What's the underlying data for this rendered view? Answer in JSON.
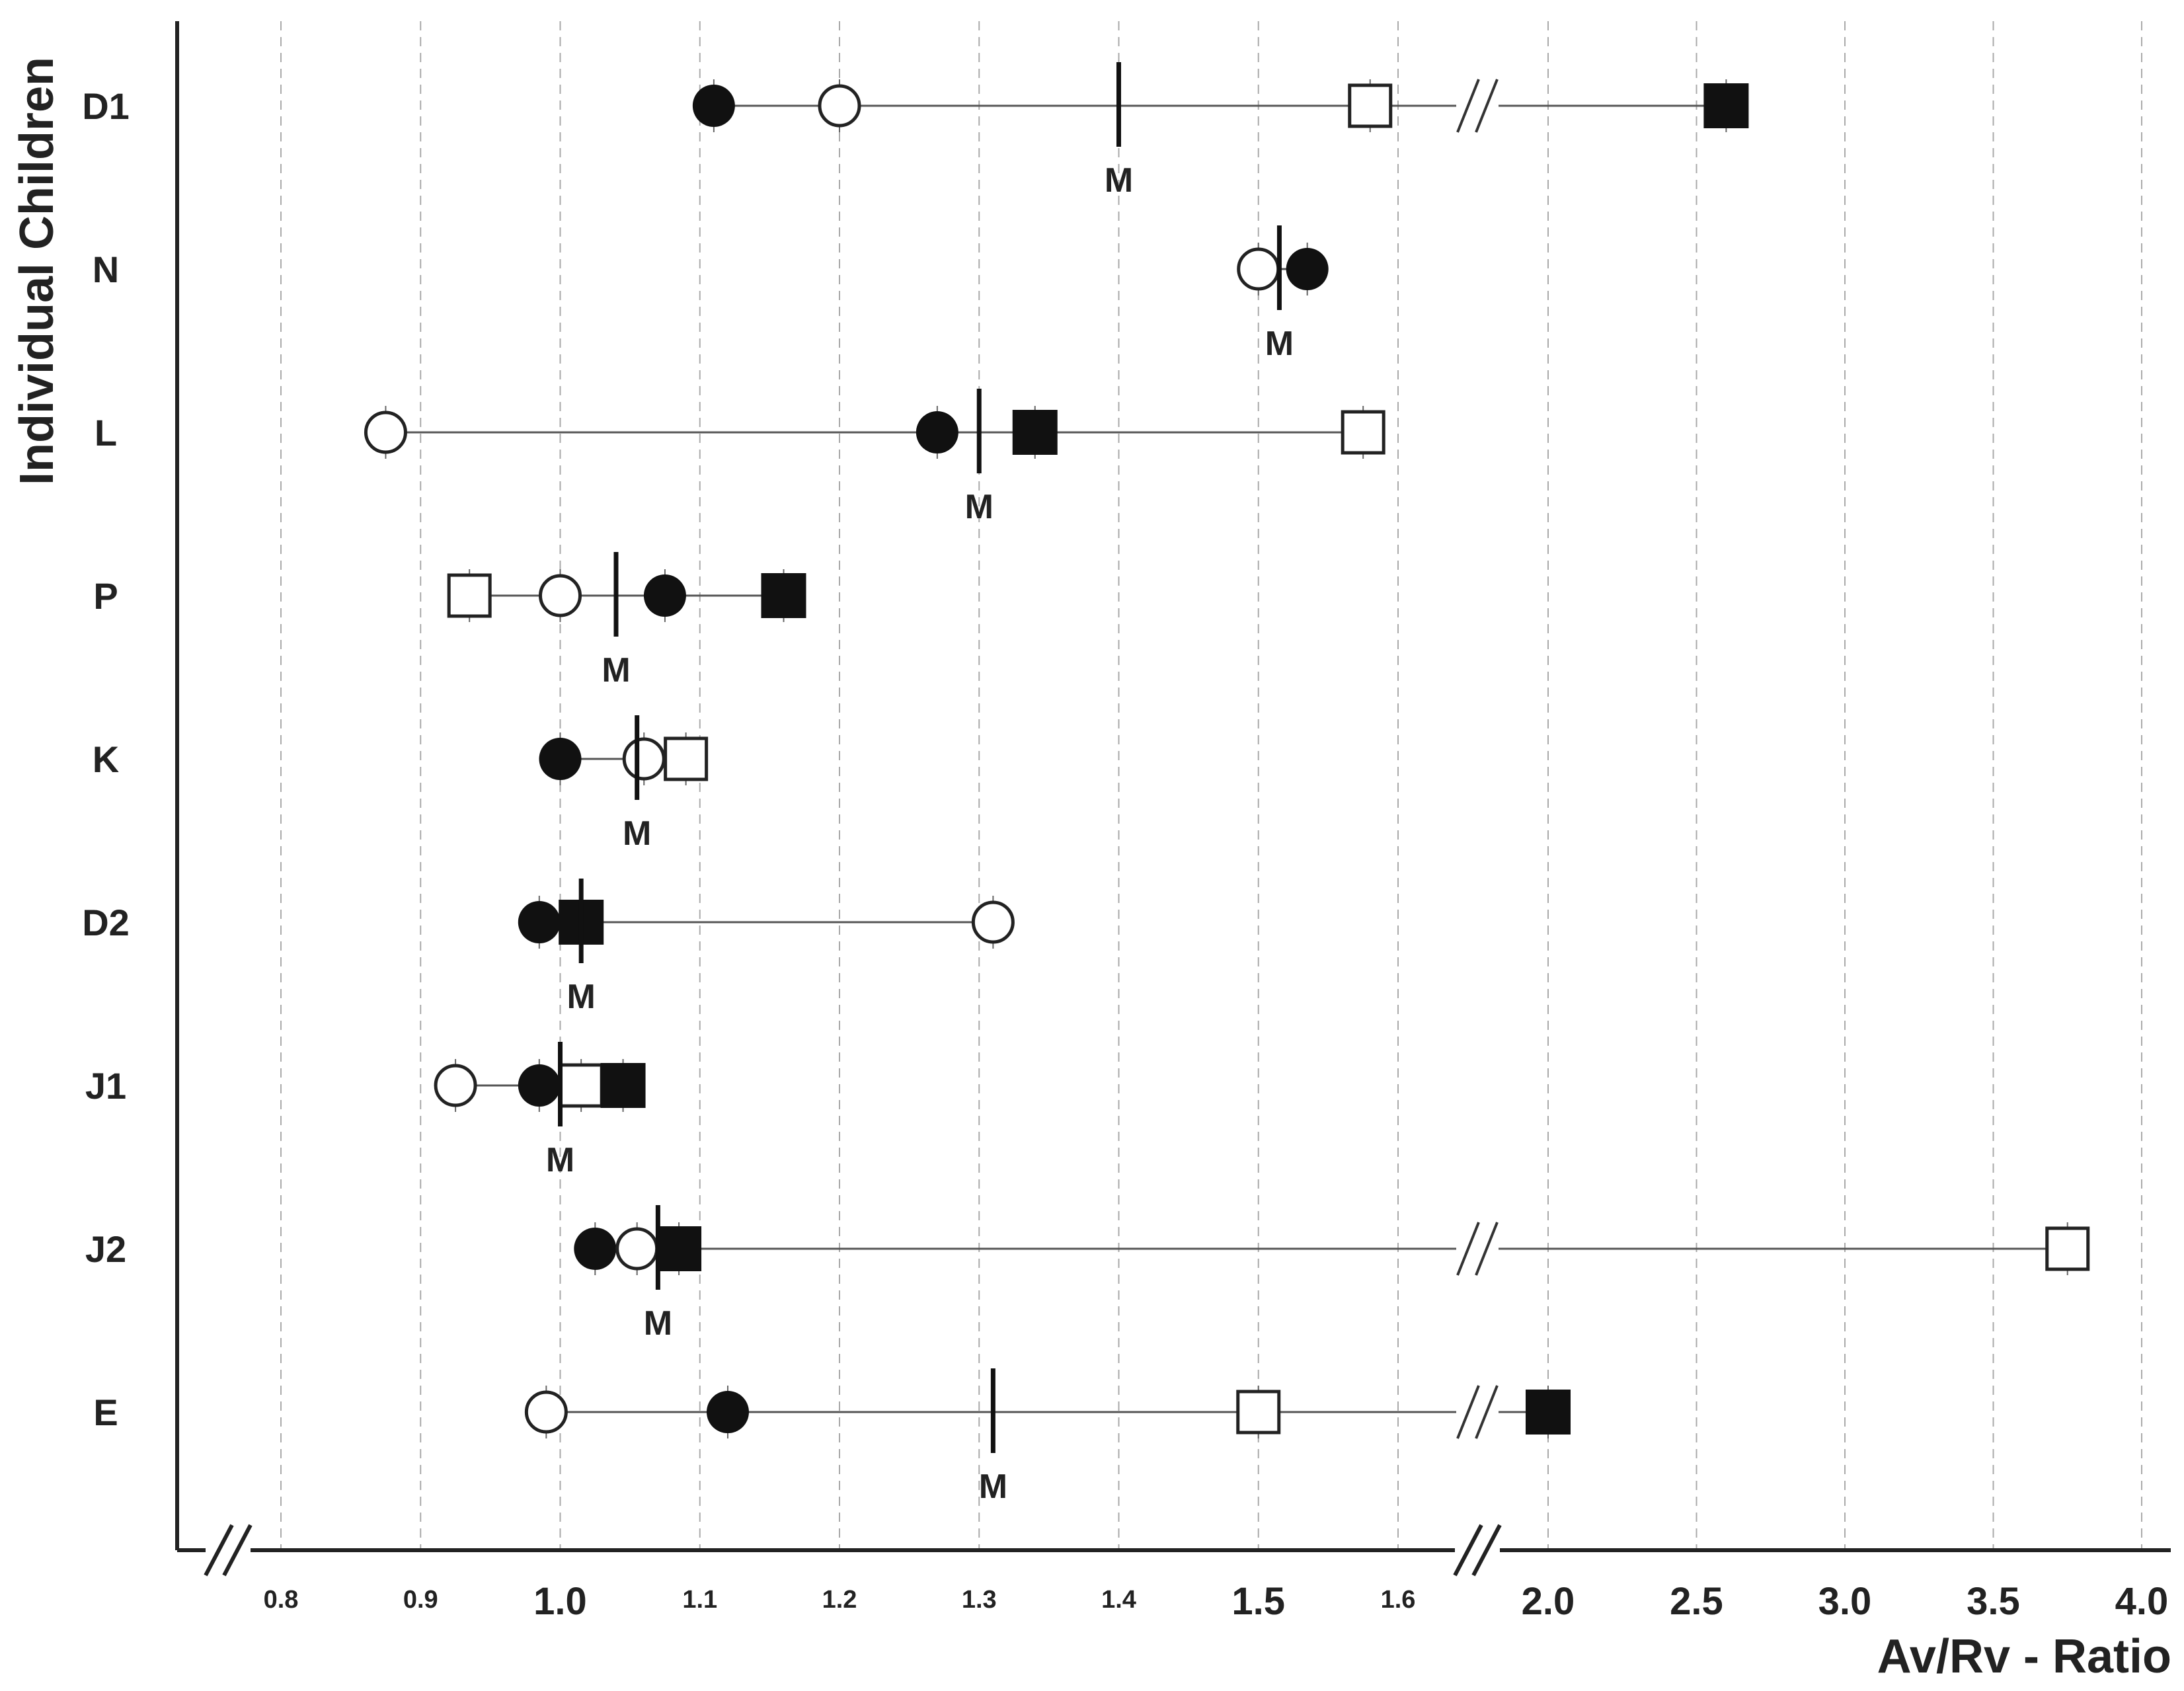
{
  "chart_data": {
    "type": "scatter",
    "title": "",
    "xlabel": "Av/Rv - Ratio",
    "ylabel": "Individual Children",
    "x_axis_segments": [
      {
        "range": [
          0.8,
          1.6
        ],
        "ticks": [
          "0.8",
          "0.9",
          "1.0",
          "1.1",
          "1.2",
          "1.3",
          "1.4",
          "1.5",
          "1.6"
        ]
      },
      {
        "range": [
          2.0,
          4.0
        ],
        "ticks": [
          "2.0",
          "2.5",
          "3.0",
          "3.5",
          "4.0"
        ]
      }
    ],
    "axis_breaks": [
      "below 0.8",
      "between 1.6 and 2.0"
    ],
    "grid": "dashed vertical at each tick",
    "mean_marker_label": "M",
    "children": [
      {
        "name": "D1",
        "points": [
          {
            "marker": "filled-circle",
            "x": 1.11
          },
          {
            "marker": "open-circle",
            "x": 1.2
          },
          {
            "marker": "open-square",
            "x": 1.58
          },
          {
            "marker": "filled-square",
            "x": 2.6
          }
        ],
        "mean": 1.4
      },
      {
        "name": "N",
        "points": [
          {
            "marker": "open-circle",
            "x": 1.5
          },
          {
            "marker": "filled-circle",
            "x": 1.535
          }
        ],
        "mean": 1.515
      },
      {
        "name": "L",
        "points": [
          {
            "marker": "open-circle",
            "x": 0.875
          },
          {
            "marker": "filled-circle",
            "x": 1.27
          },
          {
            "marker": "filled-square",
            "x": 1.34
          },
          {
            "marker": "open-square",
            "x": 1.575
          }
        ],
        "mean": 1.3
      },
      {
        "name": "P",
        "points": [
          {
            "marker": "open-square",
            "x": 0.935
          },
          {
            "marker": "open-circle",
            "x": 1.0
          },
          {
            "marker": "filled-circle",
            "x": 1.075
          },
          {
            "marker": "filled-square",
            "x": 1.16
          }
        ],
        "mean": 1.04
      },
      {
        "name": "K",
        "points": [
          {
            "marker": "filled-circle",
            "x": 1.0
          },
          {
            "marker": "open-circle",
            "x": 1.06
          },
          {
            "marker": "open-square",
            "x": 1.09
          }
        ],
        "mean": 1.055
      },
      {
        "name": "D2",
        "points": [
          {
            "marker": "filled-circle",
            "x": 0.985
          },
          {
            "marker": "filled-square",
            "x": 1.015
          },
          {
            "marker": "open-circle",
            "x": 1.31
          }
        ],
        "mean": 1.015
      },
      {
        "name": "J1",
        "points": [
          {
            "marker": "open-circle",
            "x": 0.925
          },
          {
            "marker": "filled-circle",
            "x": 0.985
          },
          {
            "marker": "open-square",
            "x": 1.015
          },
          {
            "marker": "filled-square",
            "x": 1.045
          }
        ],
        "mean": 1.0
      },
      {
        "name": "J2",
        "points": [
          {
            "marker": "filled-circle",
            "x": 1.025
          },
          {
            "marker": "open-circle",
            "x": 1.055
          },
          {
            "marker": "filled-square",
            "x": 1.085
          },
          {
            "marker": "open-square",
            "x": 3.75
          }
        ],
        "mean": 1.07
      },
      {
        "name": "E",
        "points": [
          {
            "marker": "open-circle",
            "x": 0.99
          },
          {
            "marker": "filled-circle",
            "x": 1.12
          },
          {
            "marker": "open-square",
            "x": 1.5
          },
          {
            "marker": "filled-square",
            "x": 2.0
          }
        ],
        "mean": 1.31
      }
    ]
  }
}
